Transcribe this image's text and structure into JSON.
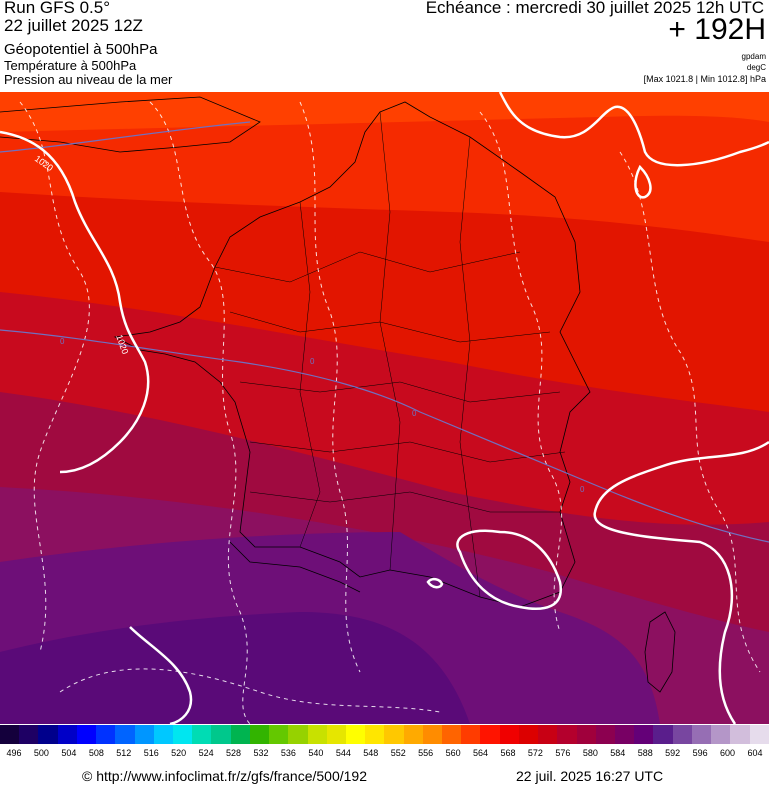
{
  "header": {
    "run": "Run GFS 0.5°",
    "run_date": "22 juillet 2025 12Z",
    "field_geopotential": "Géopotentiel à 500hPa",
    "field_temperature": "Température à 500hPa",
    "field_pressure": "Pression au niveau de la mer",
    "echeance": "Echéance : mercredi 30 juillet 2025 12h UTC",
    "forecast_hour": "+ 192H",
    "unit_geopotential": "gpdam",
    "unit_temperature": "degC",
    "pressure_range": "[Max 1021.8 | Min 1012.8] hPa"
  },
  "map": {
    "isobar_labels": [
      "1020",
      "1020"
    ],
    "isotherm_labels": [
      "0",
      "0",
      "0",
      "0"
    ],
    "colors": {
      "band_572": "#ff4000",
      "band_576": "#f52a00",
      "band_580": "#e21500",
      "band_584": "#c80a1e",
      "band_588": "#a00a40",
      "band_592": "#8c1060",
      "band_596": "#6e0f78",
      "band_600": "#5a0a78",
      "isobar": "#ffffff",
      "isotherm": "#7070c0",
      "border": "#000000"
    }
  },
  "legend": {
    "labels": [
      "496",
      "500",
      "504",
      "508",
      "512",
      "516",
      "520",
      "524",
      "528",
      "532",
      "536",
      "540",
      "544",
      "548",
      "552",
      "556",
      "560",
      "564",
      "568",
      "572",
      "576",
      "580",
      "584",
      "588",
      "592",
      "596",
      "600",
      "604"
    ],
    "colors": [
      "#14003c",
      "#1e0064",
      "#00008c",
      "#0000c8",
      "#0000ff",
      "#0032ff",
      "#0064ff",
      "#0096ff",
      "#00c8ff",
      "#00e6f0",
      "#00dcb4",
      "#00c88c",
      "#00b450",
      "#32b400",
      "#64c800",
      "#96d200",
      "#c8e100",
      "#e6e600",
      "#ffff00",
      "#ffe600",
      "#ffc800",
      "#ffaa00",
      "#ff8c00",
      "#ff6400",
      "#ff3c00",
      "#ff1400",
      "#f00000",
      "#dc0000",
      "#c80014",
      "#b4002d",
      "#a0003c",
      "#8c0050",
      "#780064",
      "#640078",
      "#5a1e8c",
      "#7846a0",
      "#966eb4",
      "#b496c8",
      "#d2bedc",
      "#e6dcec"
    ]
  },
  "footer": {
    "source": "© http://www.infoclimat.fr/z/gfs/france/500/192",
    "timestamp": "22 juil. 2025 16:27 UTC"
  }
}
